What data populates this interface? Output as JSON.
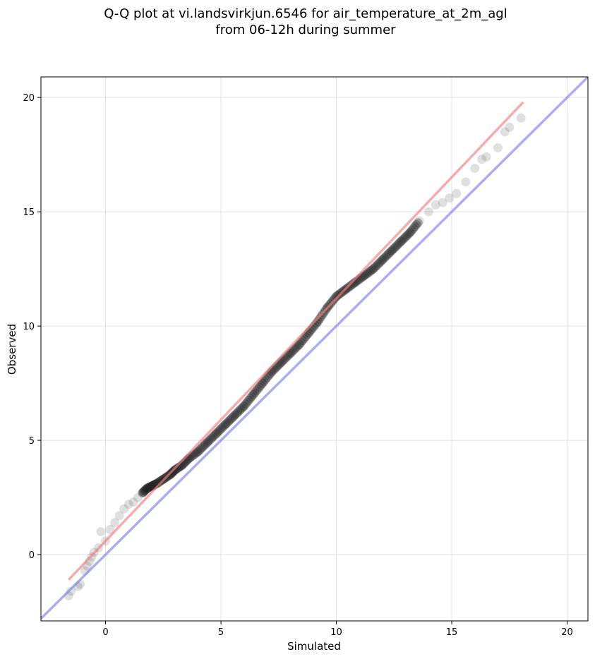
{
  "chart_data": {
    "type": "scatter",
    "title_lines": [
      "Q-Q plot at vi.landsvirkjun.6546 for air_temperature_at_2m_agl",
      "from 06-12h during summer"
    ],
    "xlabel": "Simulated",
    "ylabel": "Observed",
    "xlim": [
      -2.8,
      20.9
    ],
    "ylim": [
      -2.9,
      20.9
    ],
    "xticks": [
      0,
      5,
      10,
      15,
      20
    ],
    "yticks": [
      0,
      5,
      10,
      15,
      20
    ],
    "grid": true,
    "colors": {
      "points": "#555555",
      "fit_line": "#f08080",
      "identity_line": "#7f7fef",
      "grid": "#e0e0e0"
    },
    "quantile_points": {
      "x": [
        -1.6,
        -1.5,
        -1.2,
        -1.1,
        -0.9,
        -0.8,
        -0.7,
        -0.6,
        -0.5,
        -0.3,
        -0.2,
        0.0,
        0.2,
        0.4,
        0.6,
        0.8,
        1.0,
        1.2,
        1.4,
        1.6,
        1.8,
        2.0,
        2.2,
        2.5,
        2.8,
        3.0,
        3.3,
        3.6,
        4.0,
        4.4,
        4.8,
        5.2,
        5.6,
        6.0,
        6.4,
        6.8,
        7.2,
        7.6,
        8.0,
        8.4,
        8.8,
        9.2,
        9.6,
        10.0,
        10.4,
        10.8,
        11.2,
        11.6,
        12.0,
        12.4,
        12.8,
        13.2,
        13.6,
        14.0,
        14.3,
        14.6,
        14.9,
        15.2,
        15.6,
        16.0,
        16.3,
        16.5,
        17.0,
        17.3,
        17.5,
        18.0
      ],
      "y": [
        -1.8,
        -1.6,
        -1.4,
        -1.3,
        -0.7,
        -0.5,
        -0.3,
        -0.1,
        0.1,
        0.3,
        1.0,
        0.6,
        1.1,
        1.4,
        1.7,
        2.0,
        2.2,
        2.3,
        2.5,
        2.7,
        2.9,
        3.0,
        3.1,
        3.3,
        3.5,
        3.7,
        3.9,
        4.2,
        4.5,
        4.9,
        5.3,
        5.7,
        6.1,
        6.5,
        7.0,
        7.5,
        8.0,
        8.4,
        8.8,
        9.2,
        9.7,
        10.2,
        10.8,
        11.3,
        11.6,
        11.9,
        12.2,
        12.5,
        12.9,
        13.3,
        13.7,
        14.1,
        14.6,
        15.0,
        15.3,
        15.4,
        15.6,
        15.8,
        16.3,
        16.9,
        17.3,
        17.4,
        17.8,
        18.5,
        18.7,
        19.1
      ]
    },
    "fit_line": {
      "x": [
        -1.6,
        18.1
      ],
      "y": [
        -1.1,
        19.8
      ]
    },
    "identity_line": {
      "x": [
        -2.8,
        20.9
      ],
      "y": [
        -2.8,
        20.9
      ]
    }
  }
}
